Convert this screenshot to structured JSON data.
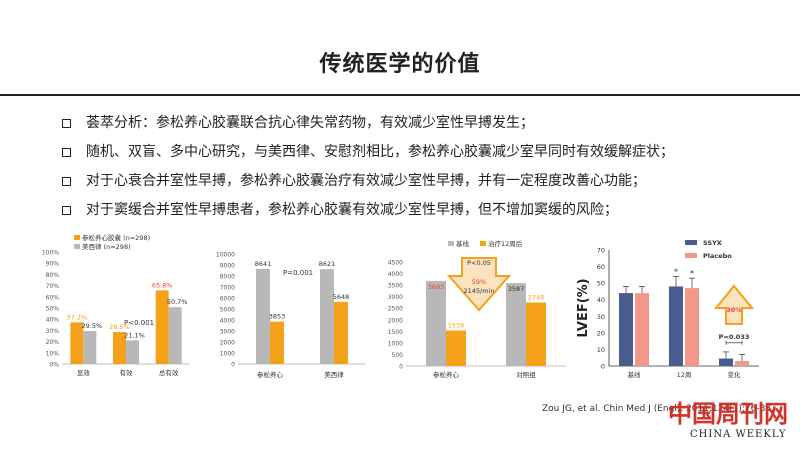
{
  "title": "传统医学的价值",
  "bullets": [
    "荟萃分析：参松养心胶囊联合抗心律失常药物，有效减少室性早搏发生；",
    "随机、双盲、多中心研究，与美西律、安慰剂相比，参松养心胶囊减少室早同时有效缓解症状；",
    "对于心衰合并室性早搏，参松养心胶囊治疗有效减少室性早搏，并有一定程度改善心功能；",
    "对于窦缓合并室性早搏患者，参松养心胶囊有效减少室性早搏，但不增加窦缓的风险；"
  ],
  "citation": "Zou JG, et al. Chin Med J (Engl). 2011;124(1):76-83.",
  "watermark": {
    "name": "中国周刊网",
    "sub": "CHINA WEEKLY"
  },
  "colors": {
    "orange": "#f5a11a",
    "gray": "#b8b8b8",
    "red": "#e8443a",
    "navy": "#4a5c8f",
    "salmon": "#f2988a"
  },
  "chart_data": [
    {
      "type": "bar",
      "legend": [
        "参松养心胶囊 (n=298)",
        "美西律 (n=298)"
      ],
      "categories": [
        "显效",
        "有效",
        "总有效"
      ],
      "series": [
        {
          "name": "参松养心胶囊 (n=298)",
          "values": [
            37.2,
            28.5,
            65.8
          ],
          "labels": [
            "37.2%",
            "28.5%",
            "65.8%"
          ]
        },
        {
          "name": "美西律 (n=298)",
          "values": [
            29.5,
            21.1,
            50.7
          ],
          "labels": [
            "29.5%",
            "21.1%",
            "50.7%"
          ]
        }
      ],
      "yticks": [
        "0%",
        "10%",
        "20%",
        "30%",
        "40%",
        "50%",
        "60%",
        "70%",
        "80%",
        "90%",
        "100%"
      ],
      "ylim": [
        0,
        100
      ],
      "annotation": "P<0.001"
    },
    {
      "type": "bar",
      "categories": [
        "参松养心",
        "美西律"
      ],
      "series": [
        {
          "values": [
            8641,
            8621
          ],
          "labels": [
            "8641",
            "8621"
          ]
        },
        {
          "values": [
            3853,
            5648
          ],
          "labels": [
            "3853",
            "5648"
          ]
        }
      ],
      "yticks": [
        "0",
        "1000",
        "2000",
        "3000",
        "4000",
        "5000",
        "6000",
        "7000",
        "8000",
        "9000",
        "10000"
      ],
      "ylim": [
        0,
        10000
      ],
      "annotation": "P=0.001"
    },
    {
      "type": "bar",
      "legend": [
        "基线",
        "治疗12周后"
      ],
      "categories": [
        "参松养心",
        "对照组"
      ],
      "series": [
        {
          "name": "基线",
          "values": [
            3683,
            3587
          ],
          "labels": [
            "3683",
            "3587"
          ]
        },
        {
          "name": "治疗12周后",
          "values": [
            1538,
            2748
          ],
          "labels": [
            "1538",
            "2748"
          ]
        }
      ],
      "yticks": [
        "0",
        "500",
        "1000",
        "1500",
        "2000",
        "2500",
        "3000",
        "3500",
        "4000",
        "4500"
      ],
      "ylim": [
        0,
        4500
      ],
      "annotation": "P<0.05",
      "arrow_label": [
        "59%",
        "2145/min"
      ]
    },
    {
      "type": "bar",
      "legend": [
        "SSYX",
        "Placebo"
      ],
      "categories": [
        "基线",
        "12周",
        "变化"
      ],
      "series": [
        {
          "name": "SSYX",
          "values": [
            44,
            48,
            4.5
          ]
        },
        {
          "name": "Placebo",
          "values": [
            44,
            47,
            3
          ]
        }
      ],
      "yticks": [
        "0",
        "10",
        "20",
        "30",
        "40",
        "50",
        "60",
        "70"
      ],
      "ylim": [
        0,
        70
      ],
      "ylabel": "LVEF(%)",
      "annotations": [
        "*",
        "*",
        "P=0.033",
        "30%"
      ]
    }
  ]
}
